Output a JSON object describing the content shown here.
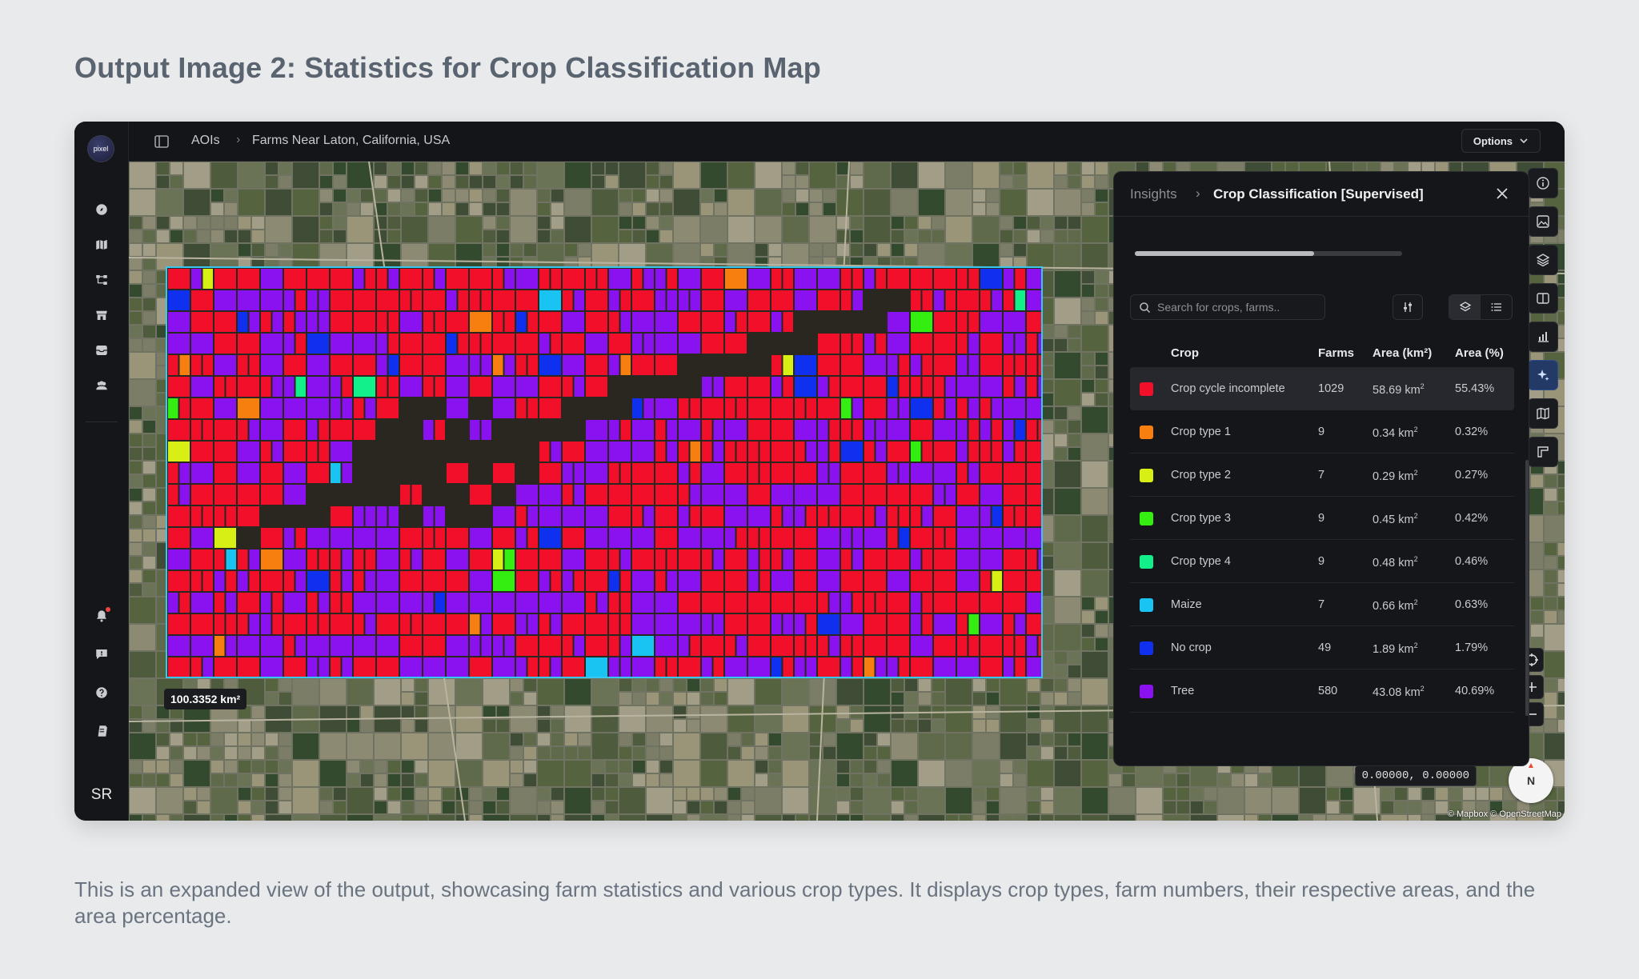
{
  "doc": {
    "title": "Output Image 2: Statistics for Crop Classification Map",
    "caption": "This is an expanded view of the output, showcasing farm statistics and various crop types. It displays crop types, farm numbers, their respective areas, and the area percentage."
  },
  "app": {
    "logo_text": "pixel",
    "breadcrumb": [
      "AOIs",
      "Farms Near Laton, California, USA"
    ],
    "options_label": "Options",
    "user_initials": "SR",
    "rail_icons": [
      "compass-icon",
      "map-icon",
      "workflow-icon",
      "store-icon",
      "archive-icon",
      "team-icon"
    ],
    "rail_bottom_icons": [
      "bell-icon",
      "feedback-icon",
      "help-icon",
      "docs-icon"
    ]
  },
  "map": {
    "area_label": "100.3352 km²",
    "coordinates": "0.00000, 0.00000",
    "attribution": "© Mapbox © OpenStreetMap",
    "compass_label": "N",
    "tools": [
      "info-icon",
      "image-icon",
      "layers-icon",
      "split-view-icon",
      "chart-icon",
      "sparkle-icon",
      "map-book-icon",
      "ruler-icon"
    ],
    "active_tool_index": 5
  },
  "panel": {
    "crumb_root": "Insights",
    "crumb_title": "Crop Classification [Supervised]",
    "progress_fraction": 0.67,
    "search_placeholder": "Search for crops, farms..",
    "columns": [
      "Crop",
      "Farms",
      "Area (km²)",
      "Area (%)"
    ],
    "selected_index": 0,
    "rows": [
      {
        "crop": "Crop cycle incomplete",
        "farms": "1029",
        "area_km": "58.69 km",
        "area_pct": "55.43%",
        "color": "#f20f2a"
      },
      {
        "crop": "Crop type 1",
        "farms": "9",
        "area_km": "0.34 km",
        "area_pct": "0.32%",
        "color": "#f77f0f"
      },
      {
        "crop": "Crop type 2",
        "farms": "7",
        "area_km": "0.29 km",
        "area_pct": "0.27%",
        "color": "#d8ef15"
      },
      {
        "crop": "Crop type 3",
        "farms": "9",
        "area_km": "0.45 km",
        "area_pct": "0.42%",
        "color": "#33ee10"
      },
      {
        "crop": "Crop type 4",
        "farms": "9",
        "area_km": "0.48 km",
        "area_pct": "0.46%",
        "color": "#12f08a"
      },
      {
        "crop": "Maize",
        "farms": "7",
        "area_km": "0.66 km",
        "area_pct": "0.63%",
        "color": "#19c3f2"
      },
      {
        "crop": "No crop",
        "farms": "49",
        "area_km": "1.89 km",
        "area_pct": "1.79%",
        "color": "#1030f0"
      },
      {
        "crop": "Tree",
        "farms": "580",
        "area_km": "43.08 km",
        "area_pct": "40.69%",
        "color": "#8a12f0"
      }
    ]
  }
}
